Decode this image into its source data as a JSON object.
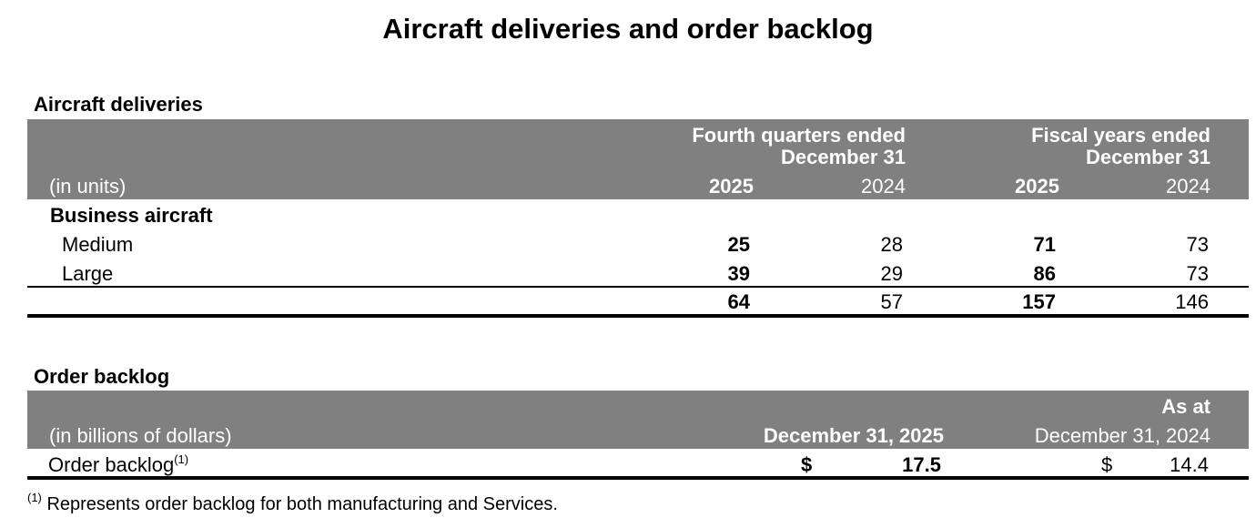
{
  "title": "Aircraft deliveries and order backlog",
  "deliveries": {
    "section_title": "Aircraft deliveries",
    "unit_label": "(in units)",
    "group1_header": [
      "Fourth quarters ended",
      "December 31"
    ],
    "group2_header": [
      "Fiscal years ended",
      "December 31"
    ],
    "years": [
      "2025",
      "2024",
      "2025",
      "2024"
    ],
    "category": "Business aircraft",
    "rows": [
      {
        "label": "Medium",
        "values": [
          "25",
          "28",
          "71",
          "73"
        ]
      },
      {
        "label": "Large",
        "values": [
          "39",
          "29",
          "86",
          "73"
        ]
      }
    ],
    "total": [
      "64",
      "57",
      "157",
      "146"
    ]
  },
  "backlog": {
    "section_title": "Order backlog",
    "as_at": "As at",
    "unit_label": "(in billions of dollars)",
    "col1_header": "December 31, 2025",
    "col2_header": "December 31, 2024",
    "row_label": "Order backlog",
    "footnote_marker": "(1)",
    "currency": "$",
    "value_2025": "17.5",
    "value_2024": "14.4"
  },
  "footnote": {
    "marker": "(1)",
    "text": "Represents order backlog for both manufacturing and Services."
  }
}
